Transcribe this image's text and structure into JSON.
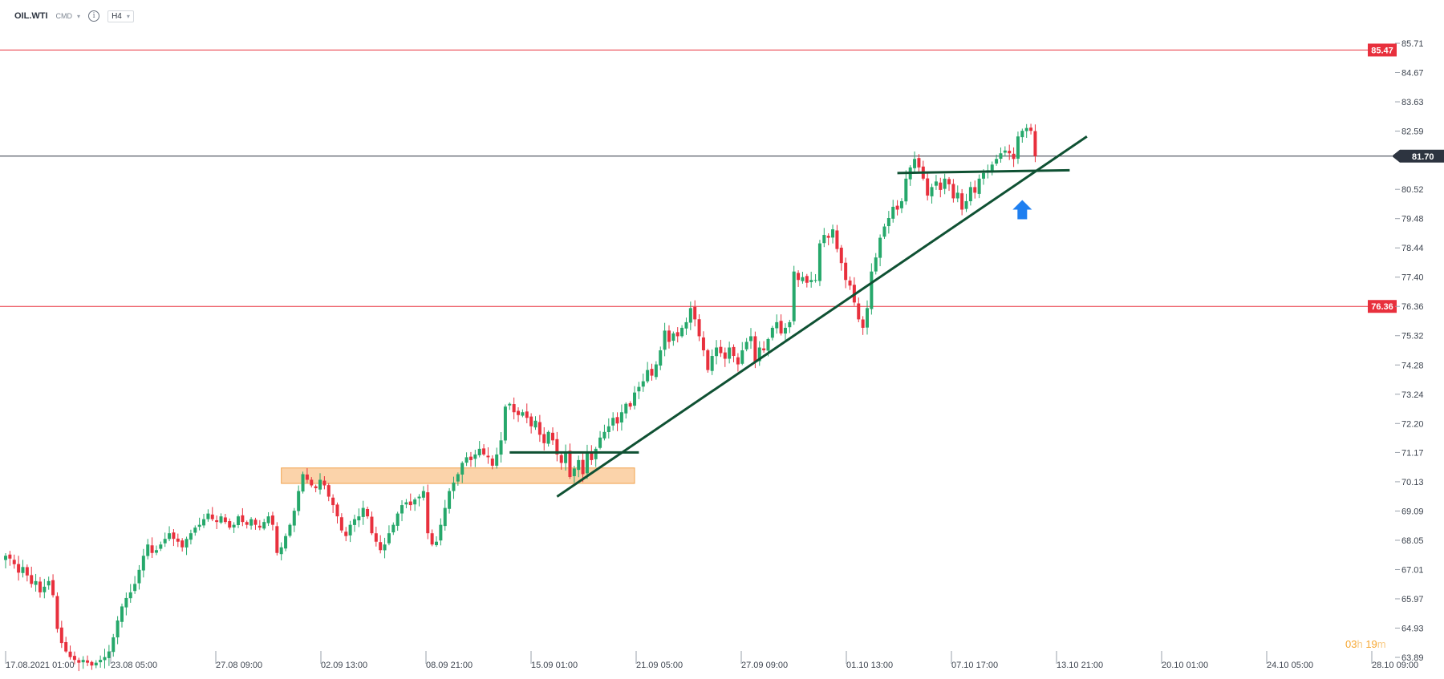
{
  "header": {
    "symbol": "OIL.WTI",
    "market": "CMD",
    "timeframe": "H4",
    "info_icon": "info-icon",
    "dropdown_icon": "chevron-down-icon"
  },
  "colors": {
    "bull": "#26a86b",
    "bear": "#e8303d",
    "level_line": "#e8303d",
    "price_line": "#2d3440",
    "trendline": "#0f5133",
    "zone_fill": "#f9c48d",
    "zone_stroke": "#f1a34f",
    "arrow": "#1f7ff0",
    "timer": "#f6a62f"
  },
  "timer": {
    "hours": "03",
    "h_unit": "h",
    "minutes": "19",
    "m_unit": "m"
  },
  "chart_data": {
    "type": "candlestick",
    "symbol": "OIL.WTI",
    "timeframe": "H4",
    "ylim": [
      63.89,
      85.71
    ],
    "y_ticks": [
      "85.71",
      "84.67",
      "83.63",
      "82.59",
      "81.70",
      "80.52",
      "79.48",
      "78.44",
      "77.40",
      "76.36",
      "75.32",
      "74.28",
      "73.24",
      "72.20",
      "71.17",
      "70.13",
      "69.09",
      "68.05",
      "67.01",
      "65.97",
      "64.93",
      "63.89"
    ],
    "x_ticks": [
      "17.08.2021  01:00",
      "23.08  05:00",
      "27.08  09:00",
      "02.09  13:00",
      "08.09  21:00",
      "15.09  01:00",
      "21.09  05:00",
      "27.09  09:00",
      "01.10  13:00",
      "07.10  17:00",
      "13.10  21:00",
      "20.10  01:00",
      "24.10  05:00",
      "28.10  09:00"
    ],
    "x_range": [
      "17.08.2021  01:00",
      "28.10  09:00"
    ],
    "levels": [
      {
        "label": "85.47",
        "value": 85.47,
        "kind": "resistance"
      },
      {
        "label": "76.36",
        "value": 76.36,
        "kind": "support"
      }
    ],
    "current_price": {
      "label": "81.70",
      "value": 81.7
    },
    "closes": [
      67.5,
      67.4,
      67.2,
      66.9,
      67.1,
      66.8,
      66.5,
      66.6,
      66.2,
      66.4,
      66.6,
      66.1,
      64.9,
      64.4,
      64.1,
      63.9,
      63.8,
      63.7,
      63.8,
      63.7,
      63.6,
      63.7,
      63.8,
      63.9,
      64.1,
      64.6,
      65.2,
      65.7,
      66.0,
      66.2,
      66.5,
      67.0,
      67.5,
      67.9,
      67.6,
      67.7,
      67.9,
      68.1,
      68.3,
      68.1,
      68.0,
      67.8,
      68.1,
      68.3,
      68.5,
      68.6,
      68.8,
      69.0,
      68.8,
      68.7,
      68.9,
      68.7,
      68.5,
      68.6,
      68.9,
      68.7,
      68.6,
      68.8,
      68.6,
      68.5,
      68.7,
      68.9,
      68.6,
      67.6,
      67.8,
      68.2,
      68.6,
      69.1,
      69.8,
      70.4,
      70.2,
      70.0,
      69.9,
      70.2,
      70.0,
      69.6,
      69.3,
      68.9,
      68.4,
      68.2,
      68.6,
      68.8,
      68.9,
      69.2,
      68.9,
      68.3,
      68.0,
      67.7,
      67.9,
      68.3,
      68.6,
      69.0,
      69.3,
      69.4,
      69.3,
      69.5,
      69.6,
      69.8,
      68.3,
      67.9,
      68.0,
      68.6,
      69.2,
      69.8,
      70.1,
      70.4,
      70.8,
      71.0,
      70.9,
      71.1,
      71.3,
      71.1,
      71.0,
      70.7,
      71.1,
      71.6,
      72.8,
      72.9,
      72.6,
      72.5,
      72.6,
      72.4,
      72.1,
      72.3,
      71.8,
      71.5,
      71.9,
      71.6,
      71.1,
      70.8,
      71.2,
      70.3,
      70.6,
      70.9,
      70.4,
      71.2,
      70.9,
      71.3,
      71.7,
      71.9,
      72.1,
      72.4,
      72.2,
      72.6,
      72.9,
      72.8,
      73.3,
      73.5,
      73.7,
      74.1,
      73.9,
      74.3,
      74.8,
      75.5,
      75.1,
      75.4,
      75.3,
      75.6,
      75.8,
      76.3,
      75.9,
      75.3,
      74.8,
      74.1,
      74.6,
      74.9,
      74.7,
      74.5,
      74.9,
      74.6,
      74.3,
      74.8,
      75.1,
      75.3,
      74.4,
      74.9,
      74.8,
      75.2,
      75.6,
      75.8,
      75.4,
      75.6,
      75.8,
      77.6,
      77.3,
      77.4,
      77.2,
      77.3,
      77.3,
      78.6,
      78.9,
      78.8,
      79.1,
      78.4,
      77.9,
      77.3,
      77.1,
      76.5,
      75.9,
      75.6,
      76.3,
      77.6,
      78.1,
      78.8,
      79.2,
      79.5,
      79.9,
      79.8,
      80.1,
      80.9,
      81.3,
      81.6,
      81.3,
      80.9,
      80.3,
      80.6,
      80.8,
      80.5,
      80.9,
      80.7,
      80.2,
      80.4,
      79.8,
      80.1,
      80.6,
      80.4,
      80.9,
      81.1,
      81.2,
      81.4,
      81.6,
      81.8,
      81.9,
      81.8,
      81.6,
      82.4,
      82.6,
      82.7,
      82.6,
      81.7
    ],
    "annotations": [
      {
        "type": "trendline",
        "description": "ascending support trendline",
        "from_value": 69.6,
        "to_value": 82.4
      },
      {
        "type": "horizontal_segment",
        "value": 71.17
      },
      {
        "type": "horizontal_segment",
        "value": 81.1
      },
      {
        "type": "zone",
        "range": [
          70.07,
          70.62
        ]
      },
      {
        "type": "arrow",
        "direction": "up"
      }
    ],
    "grid": false
  }
}
